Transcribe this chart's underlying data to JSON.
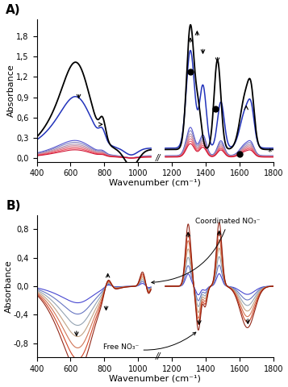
{
  "fig_width": 3.57,
  "fig_height": 4.8,
  "dpi": 100,
  "panel_A": {
    "label": "A)",
    "xlim": [
      400,
      1800
    ],
    "ylim": [
      -0.05,
      2.05
    ],
    "yticks": [
      0.0,
      0.3,
      0.6,
      0.9,
      1.2,
      1.5,
      1.8
    ],
    "ytick_labels": [
      "0,0",
      "0,3",
      "0,6",
      "0,9",
      "1,2",
      "1,5",
      "1,8"
    ],
    "xticks": [
      400,
      600,
      800,
      1000,
      1200,
      1400,
      1600,
      1800
    ],
    "xlabel": "Wavenumber (cm⁻¹)",
    "ylabel": "Absorbance"
  },
  "panel_B": {
    "label": "B)",
    "xlim": [
      400,
      1800
    ],
    "ylim": [
      -1.0,
      1.0
    ],
    "yticks": [
      -0.8,
      -0.4,
      0.0,
      0.4,
      0.8
    ],
    "ytick_labels": [
      "-0,8",
      "-0,4",
      "0,0",
      "0,4",
      "0,8"
    ],
    "xticks": [
      400,
      600,
      800,
      1000,
      1200,
      1400,
      1600,
      1800
    ],
    "xlabel": "Wavenumber (cm⁻¹)",
    "ylabel": "Absorbance",
    "label_coord": "Coordinated NO₃⁻",
    "label_free": "Free NO₃⁻"
  }
}
